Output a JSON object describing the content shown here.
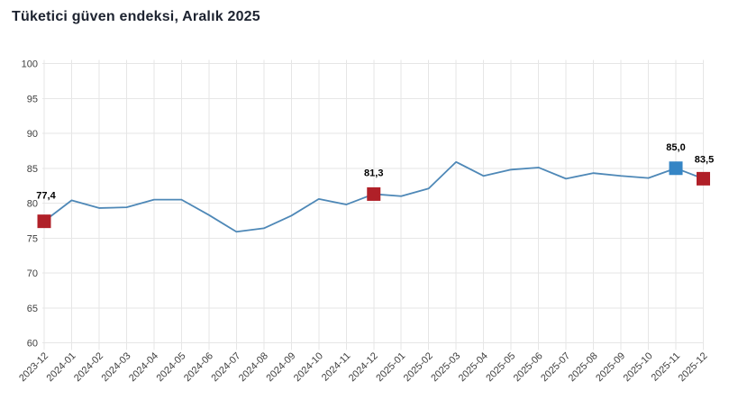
{
  "title": "Tüketici güven endeksi, Aralık 2025",
  "colors": {
    "line": "#4e88b7",
    "red_marker": "#b02028",
    "blue_marker": "#3585c5",
    "grid": "#e6e6e6",
    "axis_text": "#404040",
    "title_text": "#1d2330",
    "data_label": "#000000"
  },
  "chart_data": {
    "type": "line",
    "title": "Tüketici güven endeksi, Aralık 2025",
    "x": [
      "2023-12",
      "2024-01",
      "2024-02",
      "2024-03",
      "2024-04",
      "2024-05",
      "2024-06",
      "2024-07",
      "2024-08",
      "2024-09",
      "2024-10",
      "2024-11",
      "2024-12",
      "2025-01",
      "2025-02",
      "2025-03",
      "2025-04",
      "2025-05",
      "2025-06",
      "2025-07",
      "2025-08",
      "2025-09",
      "2025-10",
      "2025-11",
      "2025-12"
    ],
    "series": [
      {
        "name": "Tüketici güven endeksi",
        "values": [
          77.4,
          80.4,
          79.3,
          79.4,
          80.5,
          80.5,
          78.3,
          75.9,
          76.4,
          78.2,
          80.6,
          79.8,
          81.3,
          81.0,
          82.1,
          85.9,
          83.9,
          84.8,
          85.1,
          83.5,
          84.3,
          83.9,
          83.6,
          85.0,
          83.5
        ]
      }
    ],
    "ylim": [
      60,
      100
    ],
    "ytick_step": 5,
    "yticks": [
      60,
      65,
      70,
      75,
      80,
      85,
      90,
      95,
      100
    ],
    "grid": true,
    "legend": "none",
    "x_label_rotation": -45,
    "annotated_points": [
      {
        "x": "2023-12",
        "index": 0,
        "value": 77.4,
        "label": "77,4",
        "marker": "red"
      },
      {
        "x": "2024-12",
        "index": 12,
        "value": 81.3,
        "label": "81,3",
        "marker": "red"
      },
      {
        "x": "2025-11",
        "index": 23,
        "value": 85.0,
        "label": "85,0",
        "marker": "blue"
      },
      {
        "x": "2025-12",
        "index": 24,
        "value": 83.5,
        "label": "83,5",
        "marker": "red"
      }
    ]
  }
}
